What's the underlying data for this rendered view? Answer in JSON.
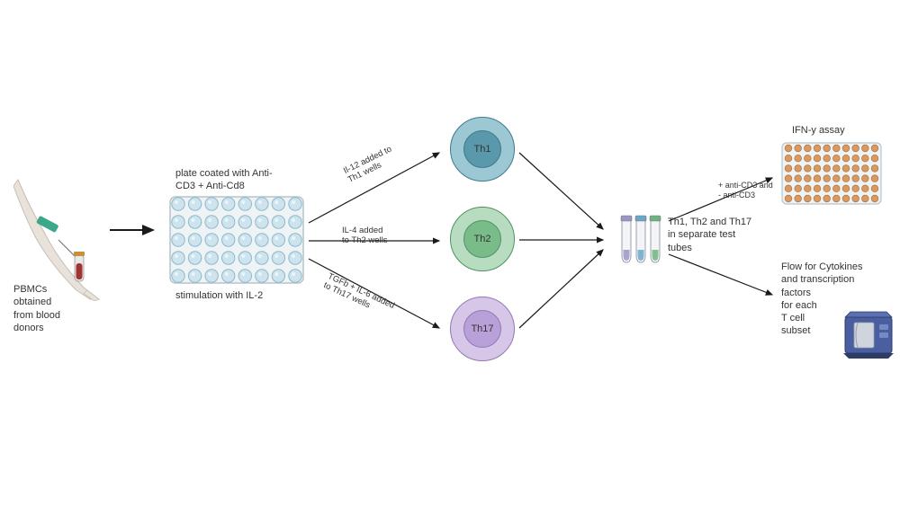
{
  "pbmcs": {
    "label": "PBMCs\nobtained\nfrom blood\ndonors"
  },
  "plate": {
    "title": "plate coated with Anti-\nCD3 + Anti-Cd8",
    "sub": "stimulation with IL-2",
    "well_fill": "#cde4ee",
    "well_stroke": "#8fb8ca",
    "plate_fill": "#eef3f5",
    "plate_stroke": "#b8c4ca",
    "rows": 5,
    "cols": 8
  },
  "branches": {
    "th1": {
      "label": "Il-12 added to\nTh1 wells"
    },
    "th2": {
      "label": "IL-4 added\nto Th2 wells"
    },
    "th17": {
      "label": "TGFb + IL-6 added\nto Th17 wells"
    }
  },
  "cells": {
    "th1": {
      "name": "Th1",
      "outer": "#9cc8d3",
      "inner": "#5a99ac",
      "stroke": "#3e7a8c"
    },
    "th2": {
      "name": "Th2",
      "outer": "#b7dcc0",
      "inner": "#7abb8a",
      "stroke": "#4f9363"
    },
    "th17": {
      "name": "Th17",
      "outer": "#d6c6e8",
      "inner": "#b8a0d8",
      "stroke": "#9279b5"
    }
  },
  "tubes": {
    "label": "Th1, Th2 and Th17\nin separate test\ntubes",
    "cap_colors": [
      "#9a96c4",
      "#6aa7c8",
      "#6fb47e"
    ]
  },
  "ifny": {
    "title": "IFN-y assay",
    "well_fill": "#d89a62",
    "well_stroke": "#b87640",
    "plate_fill": "#eef3f5",
    "plate_stroke": "#b8c4ca",
    "rows": 6,
    "cols": 10,
    "condition": "+ anti-CD3 and\n- anti-CD3"
  },
  "flow": {
    "label": "Flow for Cytokines\nand transcription\nfactors\nfor each\nT cell\nsubset",
    "body_color": "#4a5fa0",
    "panel_color": "#d0d4dc"
  },
  "arm": {
    "skin": "#e9e2da",
    "tourniquet": "#3aa889",
    "tube_fill": "#a2352f"
  }
}
